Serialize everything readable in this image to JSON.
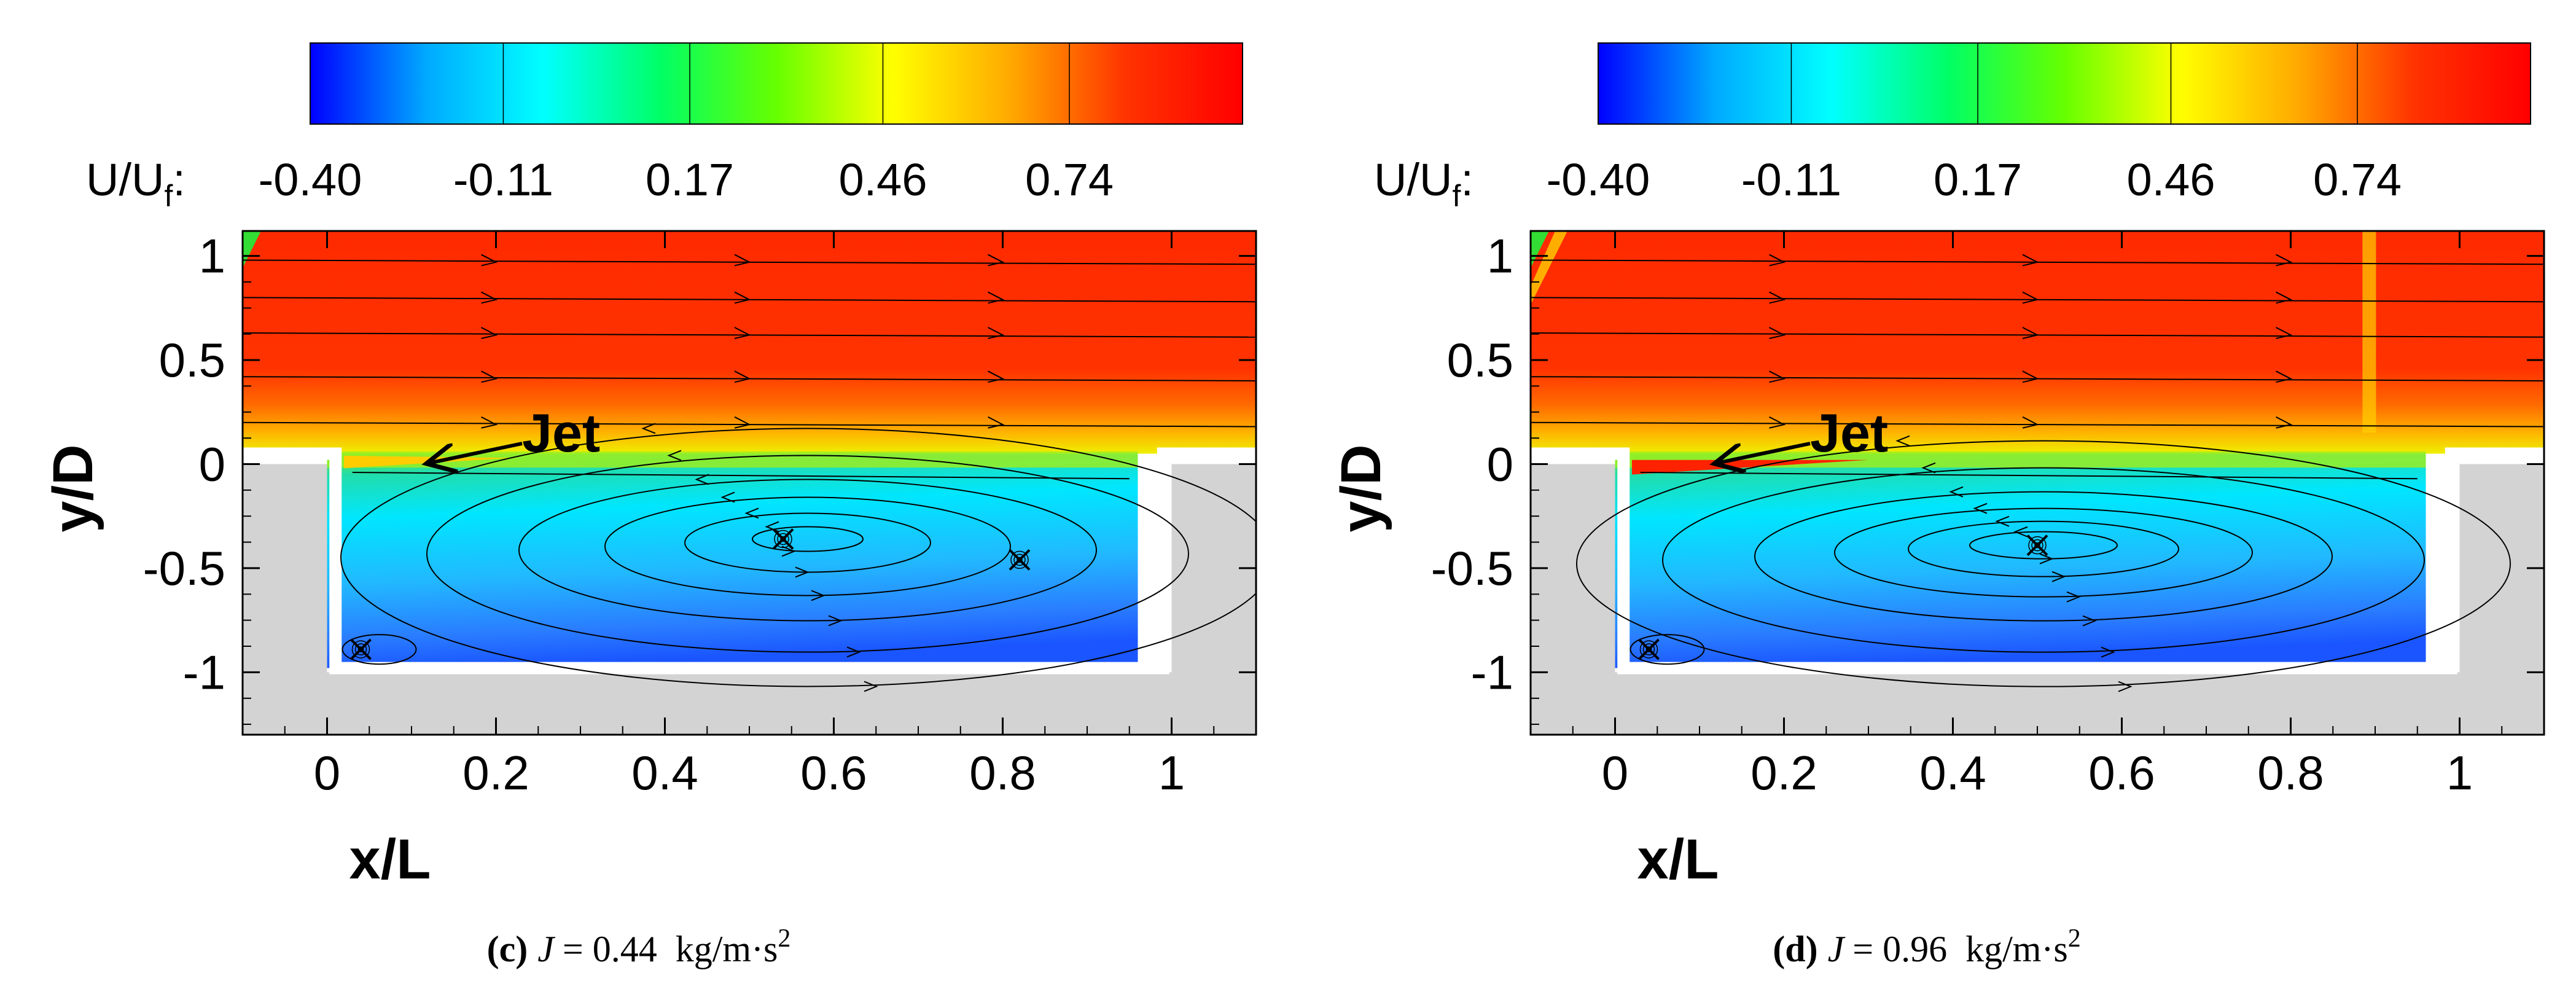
{
  "chart_data": [
    {
      "type": "contour",
      "caption_label": "(c)",
      "caption_var": "J",
      "caption_value": "= 0.44",
      "caption_unit": "kg/m·s",
      "caption_exp": "2",
      "colorbar_label": "U/U",
      "colorbar_sub": "f",
      "colorbar_colon": ":",
      "colorbar_ticks": [
        "-0.40",
        "-0.11",
        "0.17",
        "0.46",
        "0.74"
      ],
      "colorbar_range": [
        -0.4,
        1.0
      ],
      "xlabel": "x/L",
      "ylabel": "y/D",
      "xlim": [
        -0.1,
        1.1
      ],
      "ylim": [
        -1.3,
        1.12
      ],
      "xticks": [
        "0",
        "0.2",
        "0.4",
        "0.6",
        "0.8",
        "1"
      ],
      "yticks": [
        "1",
        "0.5",
        "0",
        "-0.5",
        "-1"
      ],
      "annotation": "Jet",
      "annotation_point": [
        0.1,
        0.0
      ],
      "vortex_centers": [
        [
          0.54,
          -0.36
        ],
        [
          0.82,
          -0.46
        ],
        [
          0.04,
          -0.89
        ]
      ]
    },
    {
      "type": "contour",
      "caption_label": "(d)",
      "caption_var": "J",
      "caption_value": "= 0.96",
      "caption_unit": "kg/m·s",
      "caption_exp": "2",
      "colorbar_label": "U/U",
      "colorbar_sub": "f",
      "colorbar_colon": ":",
      "colorbar_ticks": [
        "-0.40",
        "-0.11",
        "0.17",
        "0.46",
        "0.74"
      ],
      "colorbar_range": [
        -0.4,
        1.0
      ],
      "xlabel": "x/L",
      "ylabel": "y/D",
      "xlim": [
        -0.1,
        1.1
      ],
      "ylim": [
        -1.3,
        1.12
      ],
      "xticks": [
        "0",
        "0.2",
        "0.4",
        "0.6",
        "0.8",
        "1"
      ],
      "yticks": [
        "1",
        "0.5",
        "0",
        "-0.5",
        "-1"
      ],
      "annotation": "Jet",
      "annotation_point": [
        0.1,
        0.0
      ],
      "vortex_centers": [
        [
          0.5,
          -0.39
        ],
        [
          0.04,
          -0.89
        ]
      ]
    }
  ],
  "colors": {
    "cavity_wall": "#d3d3d3",
    "colormap": [
      "#0000ff",
      "#00aaff",
      "#00ffff",
      "#00ff66",
      "#66ff00",
      "#ffff00",
      "#ffaa00",
      "#ff3300",
      "#ff0000"
    ]
  }
}
